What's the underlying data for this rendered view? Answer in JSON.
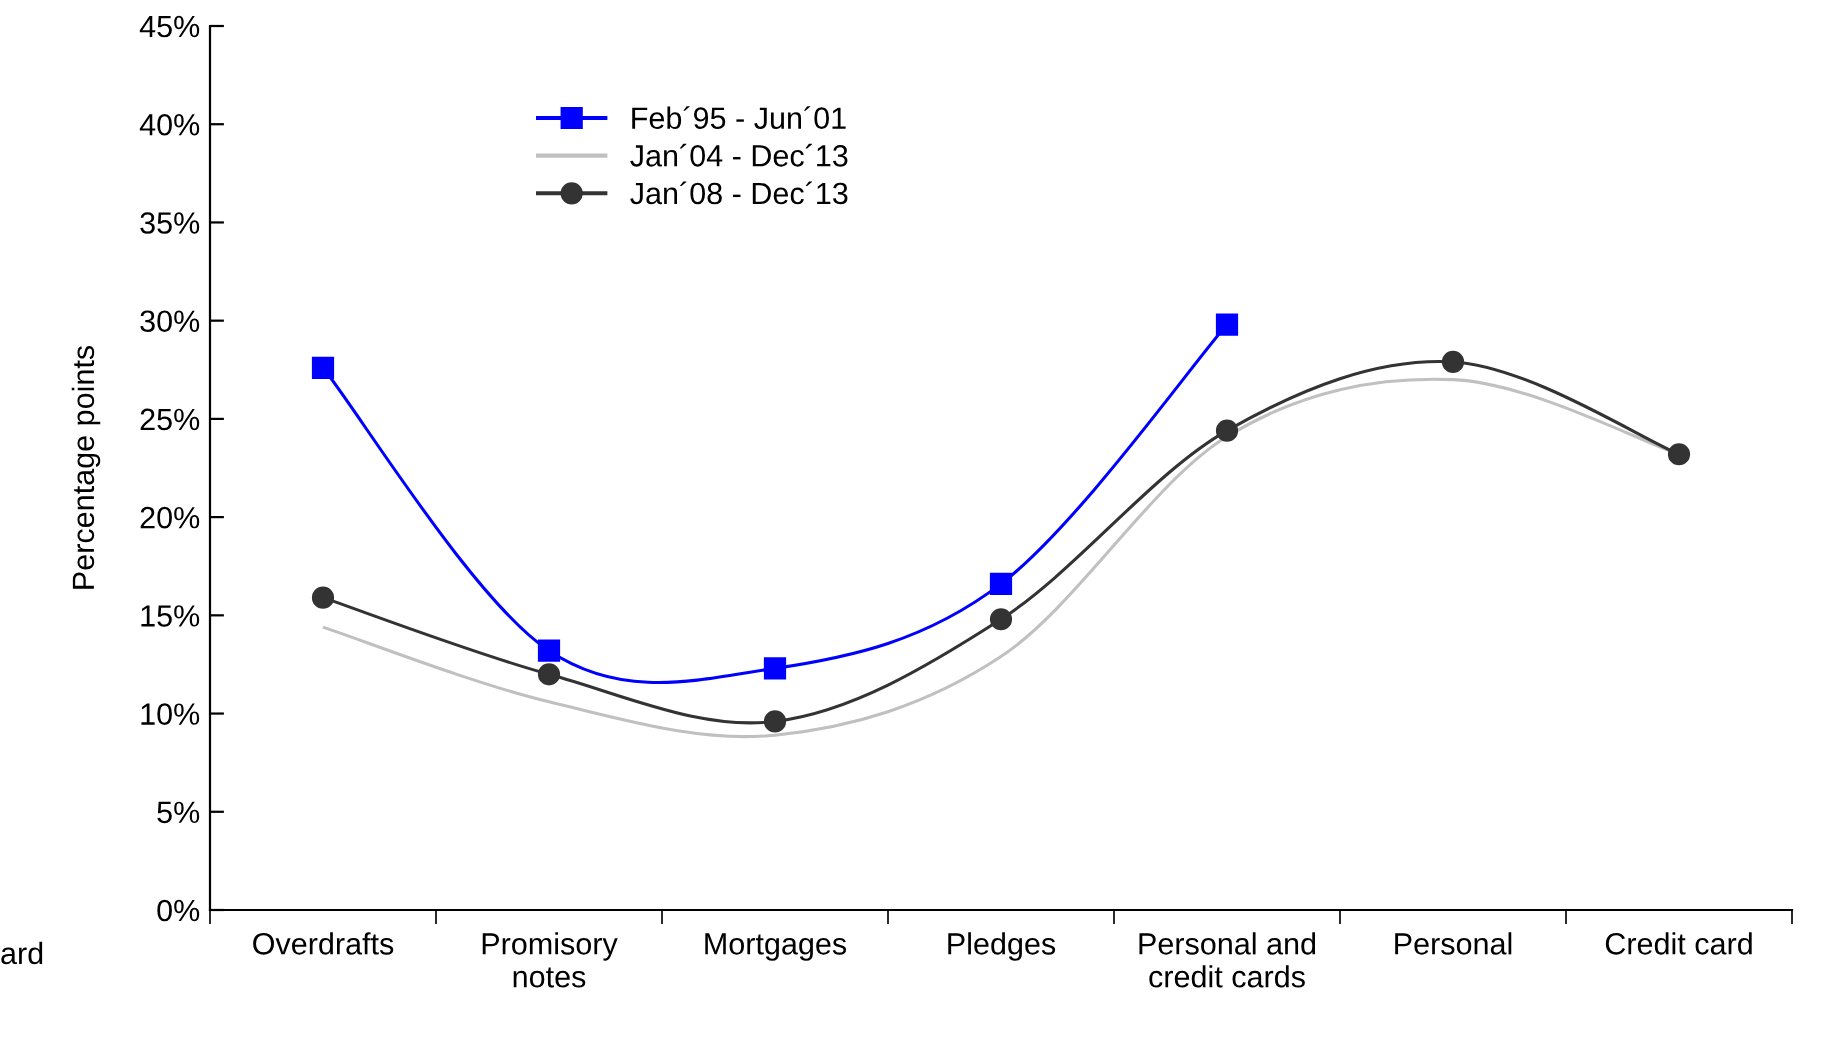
{
  "chart_data": {
    "type": "line",
    "ylabel": "Percentage points",
    "categories": [
      "Overdrafts",
      "Promisory\nnotes",
      "Mortgages",
      "Pledges",
      "Personal and\ncredit cards",
      "Personal",
      "Credit card"
    ],
    "series": [
      {
        "name": "Feb´95 - Jun´01",
        "color": "#0000ff",
        "marker": "square",
        "values": [
          27.6,
          13.2,
          12.3,
          16.6,
          29.8,
          null,
          null
        ]
      },
      {
        "name": "Jan´04 - Dec´13",
        "color": "#c0c0c0",
        "marker": "none",
        "values": [
          14.4,
          10.6,
          8.9,
          12.9,
          24.1,
          27.0,
          23.2
        ]
      },
      {
        "name": "Jan´08 - Dec´13",
        "color": "#333333",
        "marker": "circle",
        "values": [
          15.9,
          12.0,
          9.6,
          14.8,
          24.4,
          27.9,
          23.2
        ]
      }
    ],
    "ylim": [
      0,
      45
    ],
    "yticks": [
      {
        "value": 0,
        "label": "0%"
      },
      {
        "value": 5,
        "label": "5%"
      },
      {
        "value": 10,
        "label": "10%"
      },
      {
        "value": 15,
        "label": "15%"
      },
      {
        "value": 20,
        "label": "20%"
      },
      {
        "value": 25,
        "label": "25%"
      },
      {
        "value": 30,
        "label": "30%"
      },
      {
        "value": 35,
        "label": "35%"
      },
      {
        "value": 40,
        "label": "40%"
      },
      {
        "value": 45,
        "label": "45%"
      }
    ],
    "grid": false,
    "legend": "top left",
    "line_style": "solid",
    "annotations": [
      "ard"
    ]
  }
}
